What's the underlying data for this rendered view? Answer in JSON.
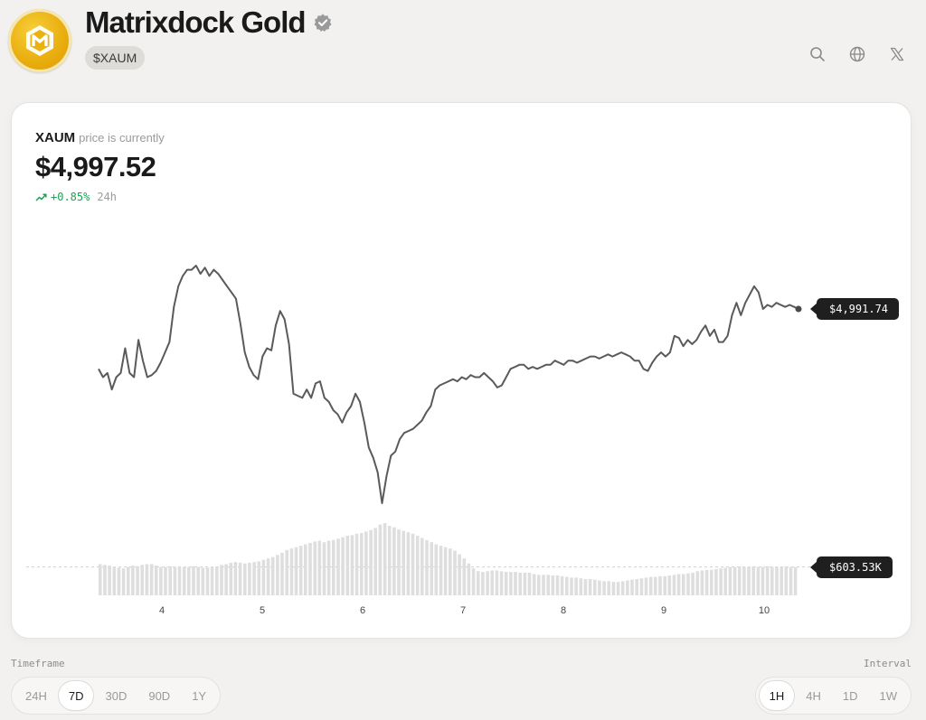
{
  "header": {
    "name": "Matrixdock Gold",
    "ticker": "$XAUM",
    "verified_icon": "verified-badge-icon",
    "icons": [
      "search-icon",
      "globe-icon",
      "x-twitter-icon"
    ]
  },
  "price_panel": {
    "symbol": "XAUM",
    "subtitle": "price is currently",
    "price": "$4,997.52",
    "change_pct": "+0.85%",
    "change_period": "24h",
    "change_icon": "trend-up-icon"
  },
  "chart_data": {
    "type": "line",
    "x_ticks": [
      "4",
      "5",
      "6",
      "7",
      "8",
      "9",
      "10"
    ],
    "price_series": [
      4962,
      4958,
      4960,
      4952,
      4958,
      4960,
      4972,
      4960,
      4958,
      4976,
      4966,
      4958,
      4959,
      4961,
      4965,
      4970,
      4975,
      4992,
      5002,
      5007,
      5010,
      5010,
      5012,
      5008,
      5011,
      5007,
      5010,
      5008,
      5005,
      5002,
      4999,
      4996,
      4984,
      4970,
      4963,
      4959,
      4957,
      4968,
      4972,
      4971,
      4983,
      4990,
      4986,
      4974,
      4950,
      4949,
      4948,
      4952,
      4948,
      4955,
      4956,
      4948,
      4946,
      4942,
      4940,
      4936,
      4941,
      4944,
      4950,
      4946,
      4936,
      4924,
      4919,
      4912,
      4897,
      4910,
      4920,
      4922,
      4928,
      4931,
      4932,
      4933,
      4935,
      4937,
      4941,
      4944,
      4952,
      4954,
      4955,
      4956,
      4957,
      4956,
      4958,
      4957,
      4959,
      4958,
      4958,
      4960,
      4958,
      4956,
      4953,
      4954,
      4958,
      4962,
      4963,
      4964,
      4964,
      4962,
      4963,
      4962,
      4963,
      4964,
      4964,
      4966,
      4965,
      4964,
      4966,
      4966,
      4965,
      4966,
      4967,
      4968,
      4968,
      4967,
      4968,
      4969,
      4968,
      4969,
      4970,
      4969,
      4968,
      4966,
      4966,
      4962,
      4961,
      4965,
      4968,
      4970,
      4968,
      4970,
      4978,
      4977,
      4973,
      4976,
      4974,
      4976,
      4980,
      4983,
      4978,
      4981,
      4975,
      4975,
      4978,
      4988,
      4994,
      4988,
      4994,
      4998,
      5002,
      4999,
      4991,
      4993,
      4992,
      4994,
      4993,
      4992,
      4993,
      4992,
      4991
    ],
    "volume_series": [
      44,
      43,
      42,
      40,
      39,
      38,
      40,
      42,
      41,
      43,
      44,
      44,
      42,
      40,
      40,
      41,
      40,
      41,
      40,
      40,
      41,
      40,
      39,
      39,
      40,
      41,
      43,
      44,
      46,
      47,
      46,
      45,
      46,
      47,
      48,
      50,
      52,
      54,
      57,
      60,
      64,
      66,
      68,
      70,
      72,
      74,
      76,
      77,
      75,
      77,
      78,
      80,
      82,
      84,
      85,
      87,
      88,
      90,
      92,
      95,
      100,
      102,
      98,
      96,
      93,
      91,
      89,
      87,
      84,
      81,
      78,
      75,
      72,
      70,
      68,
      66,
      63,
      58,
      52,
      45,
      38,
      34,
      33,
      34,
      35,
      35,
      34,
      33,
      33,
      33,
      32,
      32,
      32,
      30,
      29,
      29,
      29,
      28,
      28,
      27,
      26,
      25,
      25,
      24,
      23,
      23,
      22,
      21,
      20,
      20,
      19,
      19,
      20,
      21,
      22,
      23,
      24,
      25,
      26,
      26,
      27,
      27,
      28,
      29,
      30,
      30,
      31,
      32,
      34,
      35,
      36,
      36,
      37,
      38,
      39,
      40,
      40,
      41,
      40,
      40,
      41,
      40,
      40,
      41,
      40,
      40,
      40,
      41,
      40,
      40
    ],
    "last_price_label": "$4,991.74",
    "last_volume_label": "$603.53K",
    "grid": false
  },
  "controls": {
    "timeframe_label": "Timeframe",
    "timeframes": [
      "24H",
      "7D",
      "30D",
      "90D",
      "1Y"
    ],
    "timeframe_selected": "7D",
    "interval_label": "Interval",
    "intervals": [
      "1H",
      "4H",
      "1D",
      "1W"
    ],
    "interval_selected": "1H"
  },
  "colors": {
    "line": "#5a5a5a",
    "volume_bar": "#dedede",
    "positive": "#1aa353",
    "logo_gold": "#e9ad0e"
  }
}
